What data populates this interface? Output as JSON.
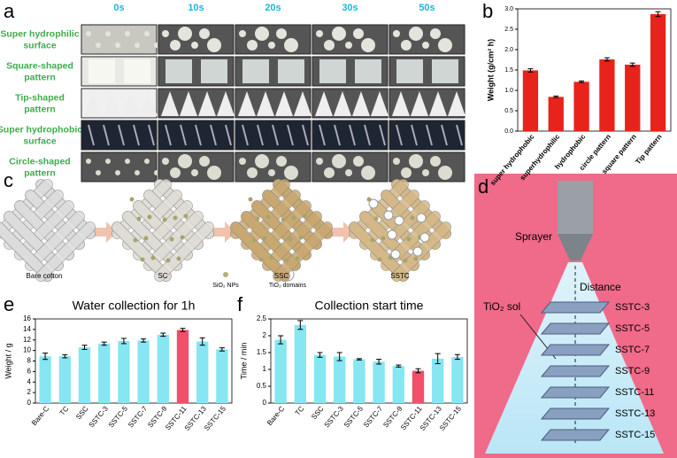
{
  "panel_a": {
    "label": "a",
    "columns": [
      "0s",
      "10s",
      "20s",
      "30s",
      "50s"
    ],
    "rows": [
      "Super hydrophilic surface",
      "Square-shaped pattern",
      "Tip-shaped pattern",
      "Super hydrophobic surface",
      "Circle-shaped pattern"
    ]
  },
  "panel_c": {
    "label": "c",
    "stages": [
      "Bare cotton",
      "SC",
      "SSC",
      "SSTC"
    ],
    "legend": [
      "SiO₂ NPs",
      "TiO₂ domains"
    ]
  },
  "panel_d": {
    "label": "d",
    "sprayer": "Sprayer",
    "distance": "Distance",
    "sol": "TiO₂ sol",
    "layers": [
      "SSTC-3",
      "SSTC-5",
      "SSTC-7",
      "SSTC-9",
      "SSTC-11",
      "SSTC-13",
      "SSTC-15"
    ]
  },
  "chart_data": [
    {
      "type": "bar",
      "panel_label": "b",
      "ylabel": "Weight (g/cm² h)",
      "categories": [
        "super hydrophobic",
        "superhydrophilic",
        "hydrophobic",
        "circle pattern",
        "square pattern",
        "Tip pattern"
      ],
      "values": [
        1.49,
        0.84,
        1.21,
        1.76,
        1.63,
        2.87
      ],
      "errors": [
        0.04,
        0.02,
        0.02,
        0.04,
        0.04,
        0.06
      ],
      "color": "#e8231b",
      "ylim": [
        0,
        3.0
      ],
      "yticks": [
        {
          "value": 0,
          "label": "0.0"
        },
        0.5,
        {
          "value": 1,
          "label": "1.0"
        },
        1.5,
        {
          "value": 2,
          "label": "2.0"
        },
        2.5,
        {
          "value": 3,
          "label": "3.0"
        }
      ]
    },
    {
      "type": "bar",
      "panel_label": "e",
      "title": "Water collection for 1h",
      "ylabel": "Weight / g",
      "categories": [
        "Bare-C",
        "TC",
        "SSC",
        "SSTC-3",
        "SSTC-5",
        "SSTC-7",
        "SSTC-9",
        "SSTC-11",
        "SSTC-13",
        "SSTC-15"
      ],
      "values": [
        8.9,
        8.9,
        10.6,
        11.3,
        11.8,
        11.9,
        13.0,
        13.9,
        11.7,
        10.2
      ],
      "errors": [
        0.6,
        0.3,
        0.4,
        0.3,
        0.5,
        0.3,
        0.3,
        0.3,
        0.7,
        0.3
      ],
      "colors": [
        "#86e6f2",
        "#86e6f2",
        "#86e6f2",
        "#86e6f2",
        "#86e6f2",
        "#86e6f2",
        "#86e6f2",
        "#f0506a",
        "#86e6f2",
        "#86e6f2"
      ],
      "ylim": [
        0,
        16
      ],
      "yticks": [
        0,
        2,
        4,
        6,
        8,
        10,
        12,
        14,
        16
      ]
    },
    {
      "type": "bar",
      "panel_label": "f",
      "title": "Collection start time",
      "ylabel": "Time / min",
      "categories": [
        "Bare-C",
        "TC",
        "SSC",
        "SSTC-3",
        "SSTC-5",
        "SSTC-7",
        "SSTC-9",
        "SSTC-11",
        "SSTC-13",
        "SSTC-15"
      ],
      "values": [
        1.88,
        2.32,
        1.43,
        1.38,
        1.3,
        1.23,
        1.1,
        0.96,
        1.32,
        1.37
      ],
      "errors": [
        0.12,
        0.13,
        0.07,
        0.12,
        0.02,
        0.07,
        0.03,
        0.06,
        0.15,
        0.07
      ],
      "colors": [
        "#86e6f2",
        "#86e6f2",
        "#86e6f2",
        "#86e6f2",
        "#86e6f2",
        "#86e6f2",
        "#86e6f2",
        "#f0506a",
        "#86e6f2",
        "#86e6f2"
      ],
      "ylim": [
        0,
        2.5
      ],
      "yticks": [
        0,
        0.5,
        1,
        1.5,
        2,
        2.5
      ]
    }
  ]
}
